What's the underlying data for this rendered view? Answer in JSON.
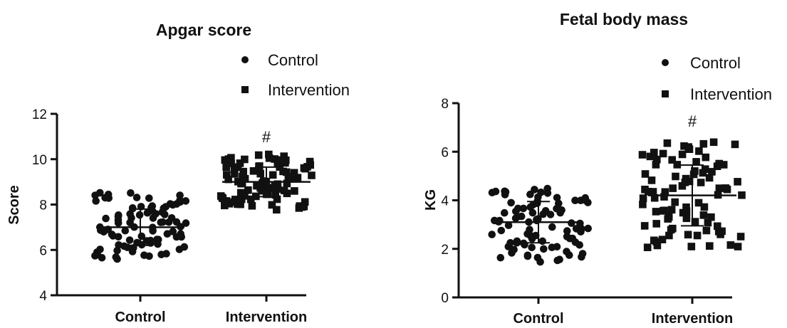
{
  "chart_data": [
    {
      "type": "scatter",
      "title": "Apgar score",
      "xlabel": "",
      "ylabel": "Score",
      "categories": [
        "Control",
        "Intervention"
      ],
      "ylim": [
        4,
        12
      ],
      "yticks": [
        "4",
        "6",
        "8",
        "10",
        "12"
      ],
      "legend": {
        "placement": "top-right",
        "entries": [
          "Control",
          "Intervention"
        ]
      },
      "grid": false,
      "colors": {
        "marker": "#111111"
      },
      "annotation": {
        "category": "Intervention",
        "text": "#"
      },
      "series": [
        {
          "name": "Control",
          "marker": "circle",
          "mean": 7.0,
          "sd": 0.8,
          "range": [
            5.6,
            8.5
          ]
        },
        {
          "name": "Intervention",
          "marker": "square",
          "mean": 9.0,
          "sd": 0.65,
          "range": [
            7.8,
            10.2
          ]
        }
      ]
    },
    {
      "type": "scatter",
      "title": "Fetal body mass",
      "xlabel": "",
      "ylabel": "KG",
      "categories": [
        "Control",
        "Intervention"
      ],
      "ylim": [
        0,
        8
      ],
      "yticks": [
        "0",
        "2",
        "4",
        "6",
        "8"
      ],
      "legend": {
        "placement": "top-right",
        "entries": [
          "Control",
          "Intervention"
        ]
      },
      "grid": false,
      "colors": {
        "marker": "#111111"
      },
      "annotation": {
        "category": "Intervention",
        "text": "#"
      },
      "series": [
        {
          "name": "Control",
          "marker": "circle",
          "mean": 3.1,
          "sd": 0.85,
          "range": [
            1.5,
            4.5
          ]
        },
        {
          "name": "Intervention",
          "marker": "square",
          "mean": 4.2,
          "sd": 1.25,
          "range": [
            2.0,
            6.4
          ]
        }
      ]
    }
  ]
}
